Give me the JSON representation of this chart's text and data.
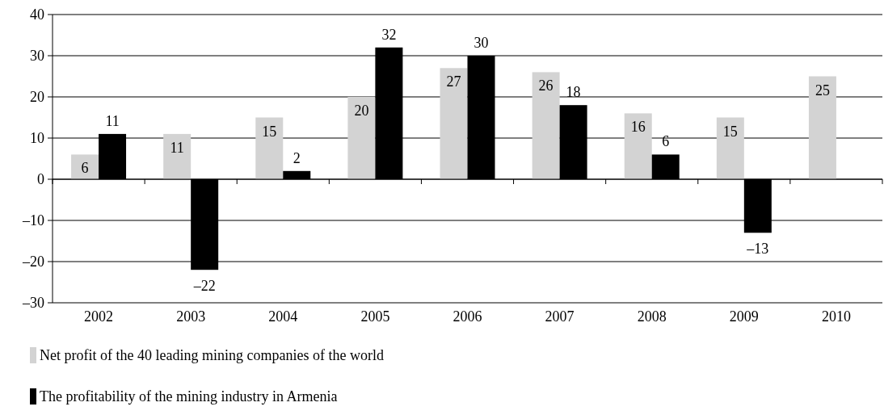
{
  "chart_data": {
    "type": "bar",
    "categories": [
      "2002",
      "2003",
      "2004",
      "2005",
      "2006",
      "2007",
      "2008",
      "2009",
      "2010"
    ],
    "series": [
      {
        "name": "Net profit of the 40 leading mining companies of the world",
        "color": "#d3d3d3",
        "values": [
          6,
          11,
          15,
          20,
          27,
          26,
          16,
          15,
          25
        ],
        "value_labels": [
          "6",
          "11",
          "15",
          "20",
          "27",
          "26",
          "16",
          "15",
          "25"
        ]
      },
      {
        "name": "The profitability of the mining industry in Armenia",
        "color": "#000000",
        "values": [
          11,
          -22,
          2,
          32,
          30,
          18,
          6,
          -13,
          null
        ],
        "value_labels": [
          "11",
          "–22",
          "2",
          "32",
          "30",
          "18",
          "6",
          "–13",
          null
        ]
      }
    ],
    "ylim": [
      -30,
      40
    ],
    "yticks": [
      {
        "value": -30,
        "label": "–30"
      },
      {
        "value": -20,
        "label": "–20"
      },
      {
        "value": -10,
        "label": "–10"
      },
      0,
      10,
      20,
      30,
      40
    ],
    "grid": "y",
    "legend": "bottom"
  }
}
